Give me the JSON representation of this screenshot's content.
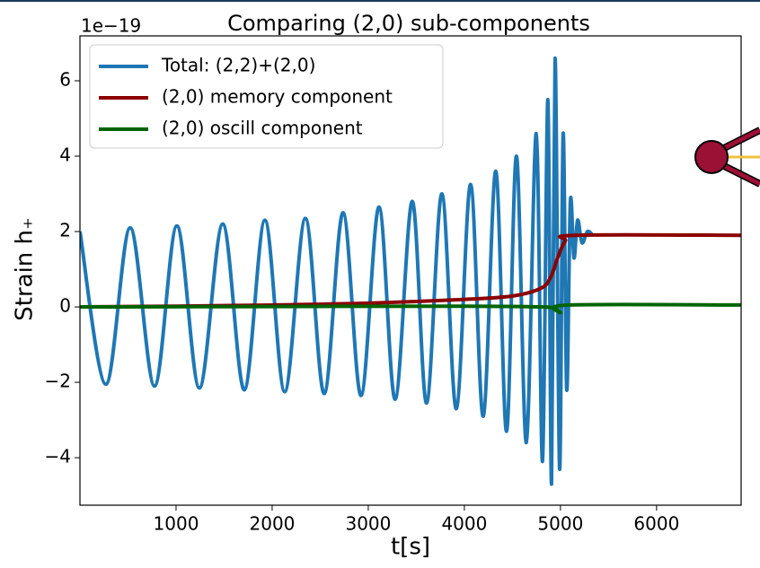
{
  "chart_data": {
    "type": "line",
    "title": "Comparing (2,0) sub-components",
    "offset_label": "1e−19",
    "xlabel": "t[s]",
    "ylabel": "Strain h₊",
    "xlim": [
      0,
      6880
    ],
    "ylim": [
      -5.26,
      7.19
    ],
    "xticks": [
      1000,
      2000,
      3000,
      4000,
      5000,
      6000
    ],
    "yticks": [
      {
        "value": -4,
        "label": "−4"
      },
      {
        "value": -2,
        "label": "−2"
      },
      0,
      2,
      4,
      6
    ],
    "legend": "upper left",
    "series": [
      {
        "name": "Total: (2,2)+(2,0)",
        "color": "#1f77b4",
        "x": [
          0,
          271,
          523,
          776,
          1009,
          1243,
          1486,
          1710,
          1925,
          2131,
          2346,
          2542,
          2738,
          2925,
          3112,
          3280,
          3458,
          3607,
          3766,
          3916,
          4065,
          4196,
          4327,
          4439,
          4542,
          4645,
          4748,
          4813,
          4869,
          4907,
          4944,
          4991,
          5028,
          5065,
          5103,
          5140,
          5178,
          5224,
          5280,
          5336
        ],
        "values": [
          2.0,
          -2.05,
          2.1,
          -2.1,
          2.15,
          -2.15,
          2.2,
          -2.2,
          2.3,
          -2.25,
          2.35,
          -2.3,
          2.5,
          -2.35,
          2.65,
          -2.45,
          2.8,
          -2.55,
          3.0,
          -2.7,
          3.25,
          -2.9,
          3.6,
          -3.3,
          4.0,
          -3.6,
          4.6,
          -4.1,
          5.5,
          -4.7,
          6.6,
          -4.3,
          4.6,
          -2.2,
          2.8,
          1.3,
          2.3,
          1.7,
          2.0,
          1.9
        ]
      },
      {
        "name": "(2,0) memory component",
        "color": "#8b0000",
        "x": [
          0,
          1000,
          2000,
          3000,
          4000,
          4500,
          4800,
          4900,
          4970,
          5050,
          5150,
          6880
        ],
        "values": [
          0.0,
          0.02,
          0.05,
          0.1,
          0.2,
          0.29,
          0.5,
          0.8,
          1.3,
          1.75,
          1.9,
          1.9
        ]
      },
      {
        "name": "(2,0) oscill component",
        "color": "#006400",
        "x": [
          0,
          2000,
          4000,
          4800,
          4950,
          5000,
          5080,
          6880
        ],
        "values": [
          0.0,
          0.01,
          0.02,
          0.0,
          -0.05,
          -0.15,
          0.05,
          0.05
        ]
      }
    ]
  }
}
